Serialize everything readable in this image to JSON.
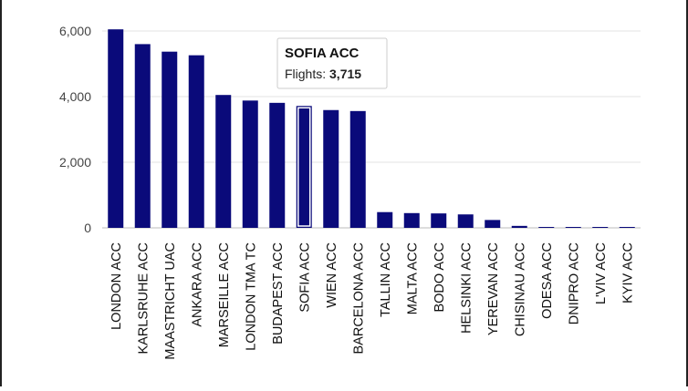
{
  "chart_data": {
    "type": "bar",
    "title": "",
    "xlabel": "",
    "ylabel": "",
    "ylim": [
      0,
      6000
    ],
    "yticks": [
      0,
      2000,
      4000,
      6000
    ],
    "ytick_labels": [
      "0",
      "2,000",
      "4,000",
      "6,000"
    ],
    "grid": true,
    "legend": "none",
    "bar_color": "#0a0a7a",
    "highlight_outline_color": "#ffffff",
    "categories": [
      "LONDON ACC",
      "KARLSRUHE ACC",
      "MAASTRICHT UAC",
      "ANKARA ACC",
      "MARSEILLE ACC",
      "LONDON TMA TC",
      "BUDAPEST ACC",
      "SOFIA ACC",
      "WIEN ACC",
      "BARCELONA ACC",
      "TALLIN ACC",
      "MALTA ACC",
      "BODO ACC",
      "HELSINKI ACC",
      "YEREVAN ACC",
      "CHISINAU ACC",
      "ODESA ACC",
      "DNIPRO ACC",
      "L'VIV ACC",
      "KYIV ACC"
    ],
    "values": [
      6050,
      5600,
      5370,
      5260,
      4050,
      3880,
      3810,
      3715,
      3590,
      3560,
      480,
      450,
      440,
      410,
      240,
      60,
      10,
      10,
      10,
      15
    ],
    "highlighted_index": 7,
    "tooltip": {
      "title": "SOFIA ACC",
      "label": "Flights: ",
      "value": "3,715"
    }
  }
}
